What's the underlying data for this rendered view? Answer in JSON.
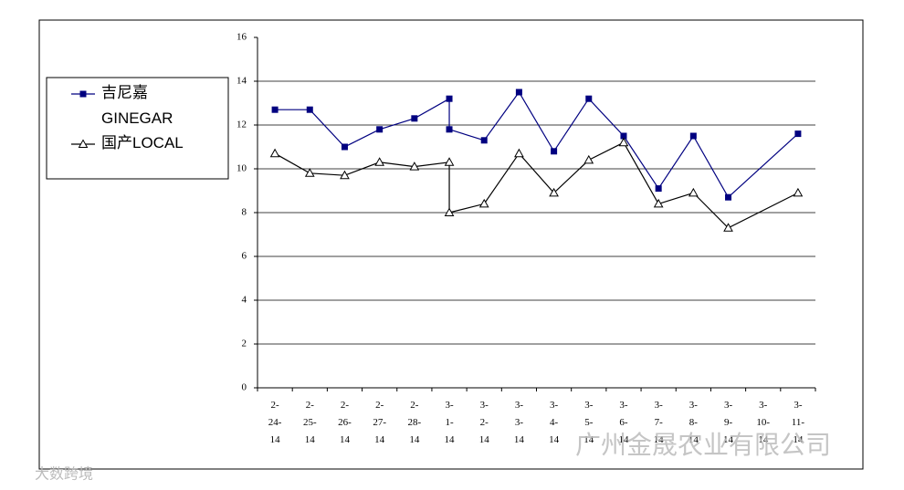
{
  "chart_data": {
    "type": "line",
    "categories": [
      "2-24-14",
      "2-25-14",
      "2-26-14",
      "2-27-14",
      "2-28-14",
      "3-1-14",
      "3-2-14",
      "3-3-14",
      "3-4-14",
      "3-5-14",
      "3-6-14",
      "3-7-14",
      "3-8-14",
      "3-9-14",
      "3-10-14",
      "3-11-14"
    ],
    "x": [
      "2-24-14",
      "2-25-14",
      "2-26-14",
      "2-27-14",
      "2-28-14",
      "3-1-14",
      "3-1-14",
      "3-2-14",
      "3-3-14",
      "3-4-14",
      "3-5-14",
      "3-6-14",
      "3-7-14",
      "3-8-14",
      "3-9-14",
      "3-11-14"
    ],
    "series": [
      {
        "name": "吉尼嘉\nGINEGAR",
        "color": "#000080",
        "marker": "square",
        "values": [
          12.7,
          12.7,
          11.0,
          11.8,
          12.3,
          13.2,
          11.8,
          11.3,
          13.5,
          10.8,
          13.2,
          11.5,
          9.1,
          11.5,
          8.7,
          11.6
        ]
      },
      {
        "name": "国产LOCAL",
        "color": "#000000",
        "marker": "triangle",
        "values": [
          10.7,
          9.8,
          9.7,
          10.3,
          10.1,
          10.3,
          8.0,
          8.4,
          10.7,
          8.9,
          10.4,
          11.2,
          8.4,
          8.9,
          7.3,
          8.9
        ]
      }
    ],
    "ylim": [
      0,
      16
    ],
    "yticks": [
      0,
      2,
      4,
      6,
      8,
      10,
      12,
      14,
      16
    ],
    "grid": true,
    "legend": "left",
    "annotations": [
      "广州金晟农业有限公司",
      "大数跨境"
    ]
  }
}
